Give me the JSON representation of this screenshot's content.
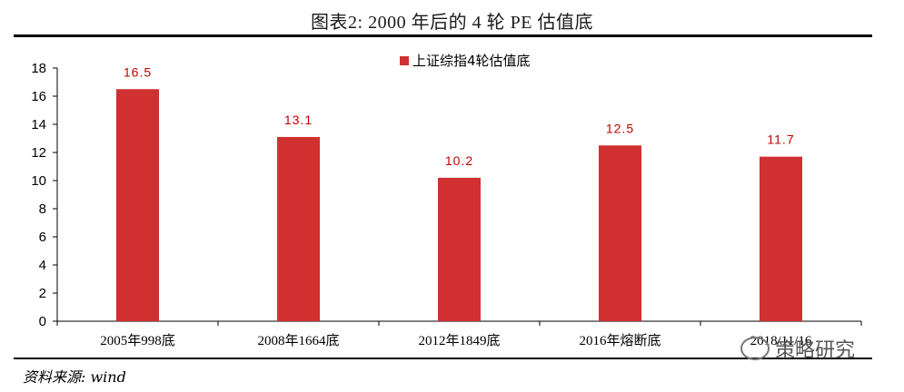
{
  "header": {
    "title": "图表2:   2000 年后的 4 轮 PE 估值底"
  },
  "footer": {
    "source": "资料来源: wind"
  },
  "watermark": {
    "text": "策略研究"
  },
  "colors": {
    "bar": "#d03030",
    "label": "#c00000",
    "axis": "#000000"
  },
  "chart_data": {
    "type": "bar",
    "categories": [
      "2005年998底",
      "2008年1664底",
      "2012年1849底",
      "2016年熔断底",
      "2018/11/16"
    ],
    "series": [
      {
        "name": "上证综指4轮估值底",
        "values": [
          16.5,
          13.1,
          10.2,
          12.5,
          11.7
        ]
      }
    ],
    "value_labels": [
      "16.5",
      "13.1",
      "10.2",
      "12.5",
      "11.7"
    ],
    "ylim": [
      0,
      18
    ],
    "yticks": [
      0,
      2,
      4,
      6,
      8,
      10,
      12,
      14,
      16,
      18
    ],
    "legend_position": "top-center",
    "grid": false
  }
}
